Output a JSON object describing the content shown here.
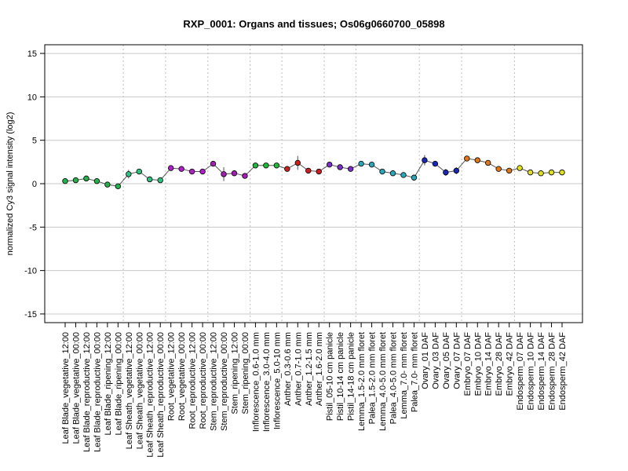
{
  "chart_data": {
    "type": "line",
    "title": "RXP_0001: Organs and tissues; Os06g0660700_05898",
    "xlabel": "",
    "ylabel": "normalized Cy3 signal intensity (log2)",
    "ylim": [
      -16,
      16
    ],
    "yticks": [
      -15,
      -10,
      -5,
      0,
      5,
      10,
      15
    ],
    "grid": true,
    "categories": [
      "Leaf Blade_vegetative_12:00",
      "Leaf Blade_vegetative_00:00",
      "Leaf Blade_reproductive_12:00",
      "Leaf Blade_reproductive_00:00",
      "Leaf Blade_ripening_12:00",
      "Leaf Blade_ripening_00:00",
      "Leaf Sheath_vegetative_12:00",
      "Leaf Sheath_vegetative_00:00",
      "Leaf Sheath_reproductive_12:00",
      "Leaf Sheath_reproductive_00:00",
      "Root_vegetative_12:00",
      "Root_vegetative_00:00",
      "Root_reproductive_12:00",
      "Root_reproductive_00:00",
      "Stem_reproductive_12:00",
      "Stem_reproductive_00:00",
      "Stem_ripening_12:00",
      "Stem_ripening_00:00",
      "Inflorescence_0.6-1.0 mm",
      "Inflorescence_3.0-4.0 mm",
      "Inflorescence_5.0-10 mm",
      "Anther_0.3-0.6 mm",
      "Anther_0.7-1.0 mm",
      "Anther_1.2-1.5 mm",
      "Anther_1.6-2.0 mm",
      "Pistil_05-10 cm panicle",
      "Pistil_10-14 cm panicle",
      "Pistil_14-18 cm panicle",
      "Lemma_1.5-2.0 mm floret",
      "Palea_1.5-2.0 mm floret",
      "Lemma_4.0-5.0 mm floret",
      "Palea_4.0-5.0 mm floret",
      "Lemma_7.0- mm floret",
      "Palea_7.0- mm floret",
      "Ovary_01 DAF",
      "Ovary_03 DAF",
      "Ovary_05 DAF",
      "Ovary_07 DAF",
      "Embryo_07 DAF",
      "Embryo_10 DAF",
      "Embryo_14 DAF",
      "Embryo_28 DAF",
      "Embryo_42 DAF",
      "Endosperm_07 DAF",
      "Endosperm_10 DAF",
      "Endosperm_14 DAF",
      "Endosperm_28 DAF",
      "Endosperm_42 DAF"
    ],
    "values": [
      0.3,
      0.4,
      0.6,
      0.3,
      -0.1,
      -0.3,
      1.1,
      1.4,
      0.5,
      0.4,
      1.8,
      1.7,
      1.4,
      1.4,
      2.3,
      1.1,
      1.2,
      0.9,
      2.1,
      2.1,
      2.1,
      1.7,
      2.4,
      1.5,
      1.4,
      2.2,
      1.9,
      1.7,
      2.3,
      2.2,
      1.4,
      1.2,
      1.0,
      0.7,
      2.7,
      2.3,
      1.3,
      1.5,
      2.9,
      2.7,
      2.4,
      1.7,
      1.5,
      1.8,
      1.3,
      1.2,
      1.3,
      1.3
    ],
    "error": [
      0.1,
      0.1,
      0.1,
      0.1,
      0.2,
      0.2,
      0.5,
      0.2,
      0.1,
      0.1,
      0.3,
      0.2,
      0.1,
      0.1,
      0.2,
      0.8,
      0.2,
      0.3,
      0.2,
      0.1,
      0.1,
      0.1,
      0.8,
      0.1,
      0.1,
      0.1,
      0.1,
      0.1,
      0.3,
      0.2,
      0.1,
      0.1,
      0.1,
      0.1,
      0.6,
      0.3,
      0.4,
      0.4,
      0.2,
      0.1,
      0.2,
      0.2,
      0.1,
      0.2,
      0.1,
      0.1,
      0.1,
      0.1
    ],
    "point_colors": [
      "#22b14c",
      "#22b14c",
      "#22b14c",
      "#22b14c",
      "#22b14c",
      "#22b14c",
      "#2ec27e",
      "#2ec27e",
      "#2ec27e",
      "#2ec27e",
      "#b020c8",
      "#b020c8",
      "#b020c8",
      "#b020c8",
      "#a020b0",
      "#a020b0",
      "#a020b0",
      "#a020b0",
      "#1fb83a",
      "#1fb83a",
      "#1fb83a",
      "#cc1f1f",
      "#cc1f1f",
      "#cc1f1f",
      "#cc1f1f",
      "#7a2fc8",
      "#7a2fc8",
      "#7a2fc8",
      "#2aa6b8",
      "#2aa6b8",
      "#2aa6b8",
      "#2aa6b8",
      "#2aa6b8",
      "#2aa6b8",
      "#1a28b8",
      "#1a28b8",
      "#1a28b8",
      "#1a28b8",
      "#e07818",
      "#e07818",
      "#e07818",
      "#e07818",
      "#e07818",
      "#e0e020",
      "#e0e020",
      "#e0e020",
      "#e0e020",
      "#e0e020"
    ],
    "group_boundaries_after_index": [
      5,
      9,
      13,
      17,
      20,
      24,
      27,
      33,
      37,
      42
    ]
  }
}
